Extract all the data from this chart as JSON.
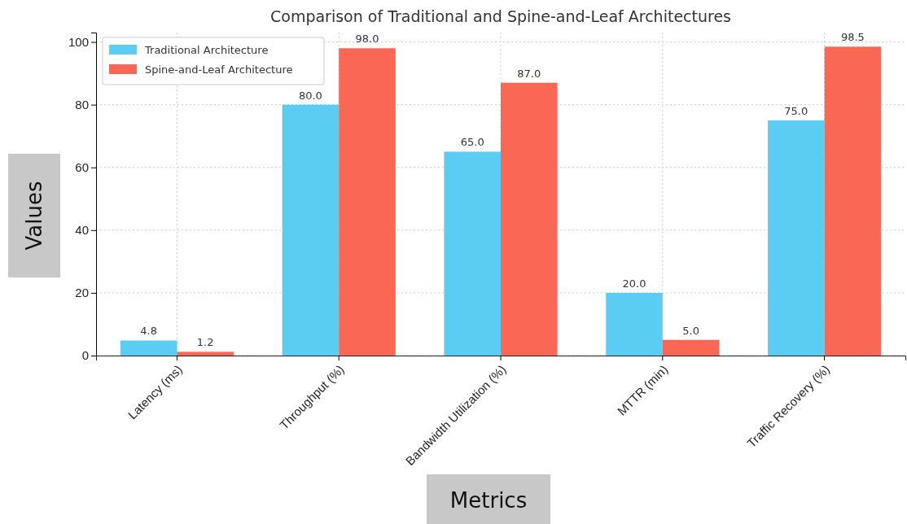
{
  "chart_data": {
    "type": "bar",
    "title": "Comparison of Traditional and Spine-and-Leaf Architectures",
    "xlabel": "Metrics",
    "ylabel": "Values",
    "categories": [
      "Latency (ms)",
      "Throughput (%)",
      "Bandwidth Utilization (%)",
      "MTTR (min)",
      "Traffic Recovery (%)"
    ],
    "series": [
      {
        "name": "Traditional Architecture",
        "color": "#5bcdf2",
        "values": [
          4.8,
          80.0,
          65.0,
          20.0,
          75.0
        ]
      },
      {
        "name": "Spine-and-Leaf Architecture",
        "color": "#fb6755",
        "values": [
          1.2,
          98.0,
          87.0,
          5.0,
          98.5
        ]
      }
    ],
    "value_labels": [
      [
        "4.8",
        "80.0",
        "65.0",
        "20.0",
        "75.0"
      ],
      [
        "1.2",
        "98.0",
        "87.0",
        "5.0",
        "98.5"
      ]
    ],
    "ylim": [
      0,
      103
    ],
    "yticks": [
      0,
      20,
      40,
      60,
      80,
      100
    ],
    "grid": true,
    "legend": "top left"
  }
}
